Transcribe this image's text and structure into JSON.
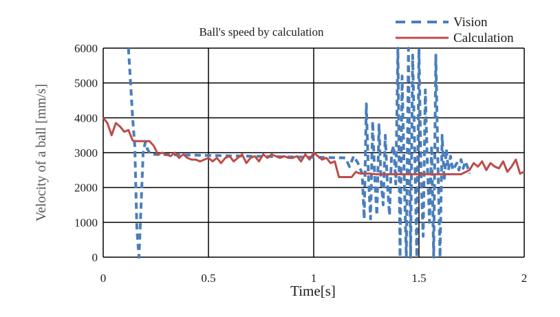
{
  "chart_data": {
    "type": "line",
    "title": "Ball's  speed by calculation",
    "xlabel": "Time[s]",
    "ylabel": "Velocity of a ball [mm/s]",
    "xlim": [
      0,
      2
    ],
    "ylim": [
      0,
      6000
    ],
    "xticks": [
      "0",
      "0.5",
      "1",
      "1.5",
      "2"
    ],
    "yticks": [
      "0",
      "1000",
      "2000",
      "3000",
      "4000",
      "5000",
      "6000"
    ],
    "grid": true,
    "legend_position": "top-right, above plot",
    "series": [
      {
        "name": "Vision",
        "color": "#4a7ebb",
        "style": "dashed",
        "x": [
          0.12,
          0.13,
          0.14,
          0.15,
          0.16,
          0.17,
          0.18,
          0.19,
          0.2,
          0.21,
          0.22,
          0.23,
          1.15,
          1.17,
          1.19,
          1.21,
          1.23,
          1.24,
          1.25,
          1.26,
          1.27,
          1.28,
          1.29,
          1.3,
          1.31,
          1.32,
          1.33,
          1.34,
          1.35,
          1.36,
          1.37,
          1.38,
          1.39,
          1.4,
          1.41,
          1.42,
          1.43,
          1.44,
          1.45,
          1.46,
          1.47,
          1.48,
          1.49,
          1.5,
          1.51,
          1.52,
          1.53,
          1.54,
          1.55,
          1.56,
          1.57,
          1.58,
          1.59,
          1.6,
          1.61,
          1.62,
          1.63,
          1.64,
          1.65,
          1.66,
          1.67,
          1.68,
          1.69,
          1.7,
          1.71,
          1.72,
          1.73,
          1.74
        ],
        "values": [
          6000,
          5000,
          4000,
          3200,
          800,
          0,
          1500,
          3000,
          3300,
          3100,
          3000,
          2950,
          2850,
          2600,
          2900,
          2700,
          2400,
          1100,
          4400,
          2300,
          1100,
          3900,
          2300,
          1200,
          3800,
          2200,
          1500,
          3500,
          2100,
          1200,
          3000,
          3200,
          2100,
          6000,
          0,
          5200,
          2300,
          0,
          6000,
          0,
          5800,
          3000,
          0,
          6000,
          2300,
          600,
          4800,
          2700,
          1000,
          3200,
          0,
          5800,
          2800,
          0,
          3500,
          2200,
          3100,
          2500,
          2900,
          2500,
          2600,
          2700,
          2500,
          2800,
          2550,
          2750,
          2600,
          2400
        ]
      },
      {
        "name": "Calculation",
        "color": "#be4b48",
        "style": "solid",
        "x": [
          0,
          0.02,
          0.04,
          0.06,
          0.08,
          0.1,
          0.12,
          0.14,
          0.16,
          0.18,
          0.2,
          0.22,
          0.24,
          0.26,
          0.28,
          0.3,
          0.32,
          0.34,
          0.36,
          0.38,
          0.4,
          0.42,
          0.44,
          0.46,
          0.48,
          0.5,
          0.52,
          0.54,
          0.56,
          0.58,
          0.6,
          0.62,
          0.64,
          0.66,
          0.68,
          0.7,
          0.72,
          0.74,
          0.76,
          0.78,
          0.8,
          0.82,
          0.84,
          0.86,
          0.88,
          0.9,
          0.92,
          0.94,
          0.96,
          0.98,
          1.0,
          1.02,
          1.04,
          1.06,
          1.08,
          1.1,
          1.12,
          1.14,
          1.16,
          1.18,
          1.2,
          1.22,
          1.24,
          1.26,
          1.3,
          1.35,
          1.4,
          1.45,
          1.5,
          1.55,
          1.6,
          1.65,
          1.7,
          1.74,
          1.76,
          1.78,
          1.8,
          1.82,
          1.84,
          1.86,
          1.88,
          1.9,
          1.92,
          1.94,
          1.96,
          1.98,
          2.0
        ],
        "values": [
          4000,
          3850,
          3500,
          3850,
          3750,
          3600,
          3650,
          3350,
          3330,
          3330,
          3330,
          3330,
          3200,
          2950,
          3000,
          2950,
          2900,
          3000,
          2850,
          2950,
          2850,
          2800,
          2800,
          2750,
          2800,
          2850,
          2750,
          2850,
          2700,
          2850,
          2900,
          2750,
          2850,
          2950,
          2700,
          2850,
          2900,
          2750,
          2950,
          2850,
          2950,
          2900,
          2850,
          2900,
          2850,
          2850,
          2900,
          2750,
          2950,
          2800,
          3000,
          2900,
          2800,
          2850,
          2700,
          2750,
          2300,
          2300,
          2300,
          2300,
          2450,
          2400,
          2400,
          2400,
          2380,
          2380,
          2380,
          2380,
          2380,
          2380,
          2380,
          2380,
          2380,
          2500,
          2700,
          2600,
          2750,
          2500,
          2700,
          2600,
          2550,
          2750,
          2450,
          2600,
          2800,
          2400,
          2450
        ]
      }
    ]
  }
}
